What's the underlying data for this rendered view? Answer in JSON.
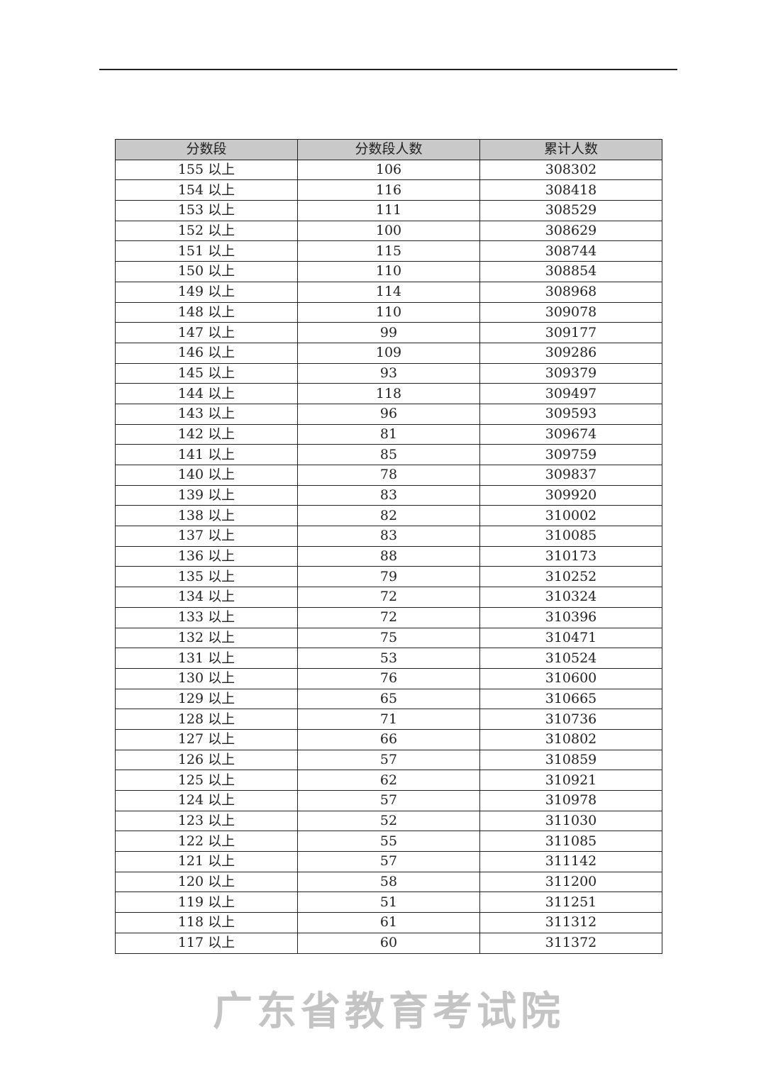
{
  "watermark": "广东省教育考试院",
  "table": {
    "headers": [
      "分数段",
      "分数段人数",
      "累计人数"
    ],
    "rows": [
      [
        "155 以上",
        "106",
        "308302"
      ],
      [
        "154 以上",
        "116",
        "308418"
      ],
      [
        "153 以上",
        "111",
        "308529"
      ],
      [
        "152 以上",
        "100",
        "308629"
      ],
      [
        "151 以上",
        "115",
        "308744"
      ],
      [
        "150 以上",
        "110",
        "308854"
      ],
      [
        "149 以上",
        "114",
        "308968"
      ],
      [
        "148 以上",
        "110",
        "309078"
      ],
      [
        "147 以上",
        "99",
        "309177"
      ],
      [
        "146 以上",
        "109",
        "309286"
      ],
      [
        "145 以上",
        "93",
        "309379"
      ],
      [
        "144 以上",
        "118",
        "309497"
      ],
      [
        "143 以上",
        "96",
        "309593"
      ],
      [
        "142 以上",
        "81",
        "309674"
      ],
      [
        "141 以上",
        "85",
        "309759"
      ],
      [
        "140 以上",
        "78",
        "309837"
      ],
      [
        "139 以上",
        "83",
        "309920"
      ],
      [
        "138 以上",
        "82",
        "310002"
      ],
      [
        "137 以上",
        "83",
        "310085"
      ],
      [
        "136 以上",
        "88",
        "310173"
      ],
      [
        "135 以上",
        "79",
        "310252"
      ],
      [
        "134 以上",
        "72",
        "310324"
      ],
      [
        "133 以上",
        "72",
        "310396"
      ],
      [
        "132 以上",
        "75",
        "310471"
      ],
      [
        "131 以上",
        "53",
        "310524"
      ],
      [
        "130 以上",
        "76",
        "310600"
      ],
      [
        "129 以上",
        "65",
        "310665"
      ],
      [
        "128 以上",
        "71",
        "310736"
      ],
      [
        "127 以上",
        "66",
        "310802"
      ],
      [
        "126 以上",
        "57",
        "310859"
      ],
      [
        "125 以上",
        "62",
        "310921"
      ],
      [
        "124 以上",
        "57",
        "310978"
      ],
      [
        "123 以上",
        "52",
        "311030"
      ],
      [
        "122 以上",
        "55",
        "311085"
      ],
      [
        "121 以上",
        "57",
        "311142"
      ],
      [
        "120 以上",
        "58",
        "311200"
      ],
      [
        "119 以上",
        "51",
        "311251"
      ],
      [
        "118 以上",
        "61",
        "311312"
      ],
      [
        "117 以上",
        "60",
        "311372"
      ]
    ]
  }
}
